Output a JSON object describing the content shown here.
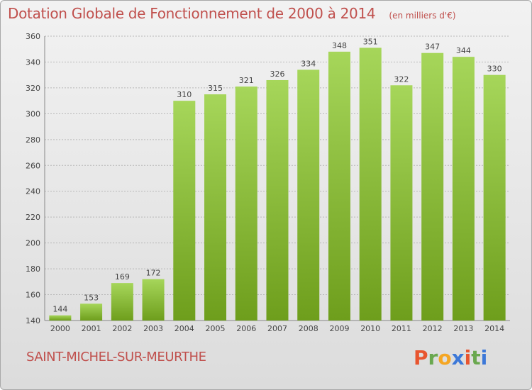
{
  "header": {
    "title": "Dotation Globale de Fonctionnement de 2000 à 2014",
    "subtitle": "(en milliers d'€)"
  },
  "footer": {
    "commune": "SAINT-MICHEL-SUR-MEURTHE",
    "logo": {
      "letters": [
        "P",
        "r",
        "o",
        "x",
        "i",
        "t",
        "i"
      ],
      "colors": [
        "#e8552f",
        "#6aa84f",
        "#f5a623",
        "#3c78d8",
        "#e8552f",
        "#6aa84f",
        "#3c78d8"
      ]
    }
  },
  "colors": {
    "bar_light": "#a6d65a",
    "bar_dark": "#6e9e1c",
    "grid": "#b8b8b8",
    "axis_text": "#444444"
  },
  "chart_data": {
    "type": "bar",
    "title": "Dotation Globale de Fonctionnement de 2000 à 2014",
    "subtitle": "(en milliers d'€)",
    "categories": [
      "2000",
      "2001",
      "2002",
      "2003",
      "2004",
      "2005",
      "2006",
      "2007",
      "2008",
      "2009",
      "2010",
      "2011",
      "2012",
      "2013",
      "2014"
    ],
    "values": [
      144,
      153,
      169,
      172,
      310,
      315,
      321,
      326,
      334,
      348,
      351,
      322,
      347,
      344,
      330
    ],
    "ylim": [
      140,
      360
    ],
    "yticks": [
      140,
      160,
      180,
      200,
      220,
      240,
      260,
      280,
      300,
      320,
      340,
      360
    ],
    "grid": true,
    "data_labels": true
  }
}
